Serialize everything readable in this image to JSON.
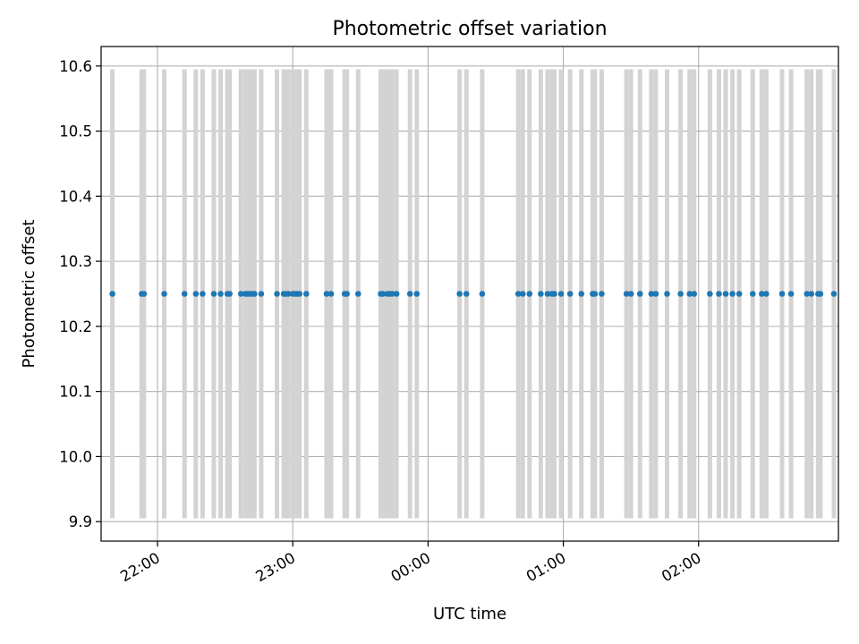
{
  "chart_data": {
    "type": "scatter",
    "title": "Photometric offset variation",
    "xlabel": "UTC time",
    "ylabel": "Photometric offset",
    "x_unit": "UTC time (h:mm, times past 24:00 are after midnight)",
    "xlim": [
      "21:35",
      "27:02"
    ],
    "ylim": [
      9.87,
      10.63
    ],
    "x_ticks": [
      {
        "t": "22:00",
        "label": "22:00"
      },
      {
        "t": "23:00",
        "label": "23:00"
      },
      {
        "t": "24:00",
        "label": "00:00"
      },
      {
        "t": "25:00",
        "label": "01:00"
      },
      {
        "t": "26:00",
        "label": "02:00"
      }
    ],
    "y_ticks": [
      {
        "v": 9.9,
        "label": "9.9"
      },
      {
        "v": 10.0,
        "label": "10.0"
      },
      {
        "v": 10.1,
        "label": "10.1"
      },
      {
        "v": 10.2,
        "label": "10.2"
      },
      {
        "v": 10.3,
        "label": "10.3"
      },
      {
        "v": 10.4,
        "label": "10.4"
      },
      {
        "v": 10.5,
        "label": "10.5"
      },
      {
        "v": 10.6,
        "label": "10.6"
      }
    ],
    "grid": true,
    "error_bars": {
      "low": 9.905,
      "high": 10.595,
      "color": "#d3d3d3"
    },
    "series": [
      {
        "color": "#1f77b4",
        "y": 10.25,
        "x": [
          "21:40",
          "21:53",
          "21:54",
          "22:03",
          "22:12",
          "22:17",
          "22:20",
          "22:25",
          "22:28",
          "22:31",
          "22:32",
          "22:37",
          "22:39",
          "22:40",
          "22:41",
          "22:42",
          "22:43",
          "22:46",
          "22:53",
          "22:56",
          "22:57",
          "22:58",
          "23:00",
          "23:01",
          "23:02",
          "23:03",
          "23:06",
          "23:15",
          "23:17",
          "23:23",
          "23:24",
          "23:29",
          "23:39",
          "23:40",
          "23:42",
          "23:43",
          "23:44",
          "23:46",
          "23:52",
          "23:55",
          "24:14",
          "24:17",
          "24:24",
          "24:40",
          "24:42",
          "24:45",
          "24:50",
          "24:53",
          "24:55",
          "24:56",
          "24:59",
          "25:03",
          "25:08",
          "25:13",
          "25:14",
          "25:17",
          "25:28",
          "25:30",
          "25:34",
          "25:39",
          "25:41",
          "25:46",
          "25:52",
          "25:56",
          "25:58",
          "26:05",
          "26:09",
          "26:12",
          "26:15",
          "26:18",
          "26:24",
          "26:28",
          "26:30",
          "26:37",
          "26:41",
          "26:48",
          "26:50",
          "26:53",
          "26:54",
          "27:00"
        ]
      }
    ]
  }
}
